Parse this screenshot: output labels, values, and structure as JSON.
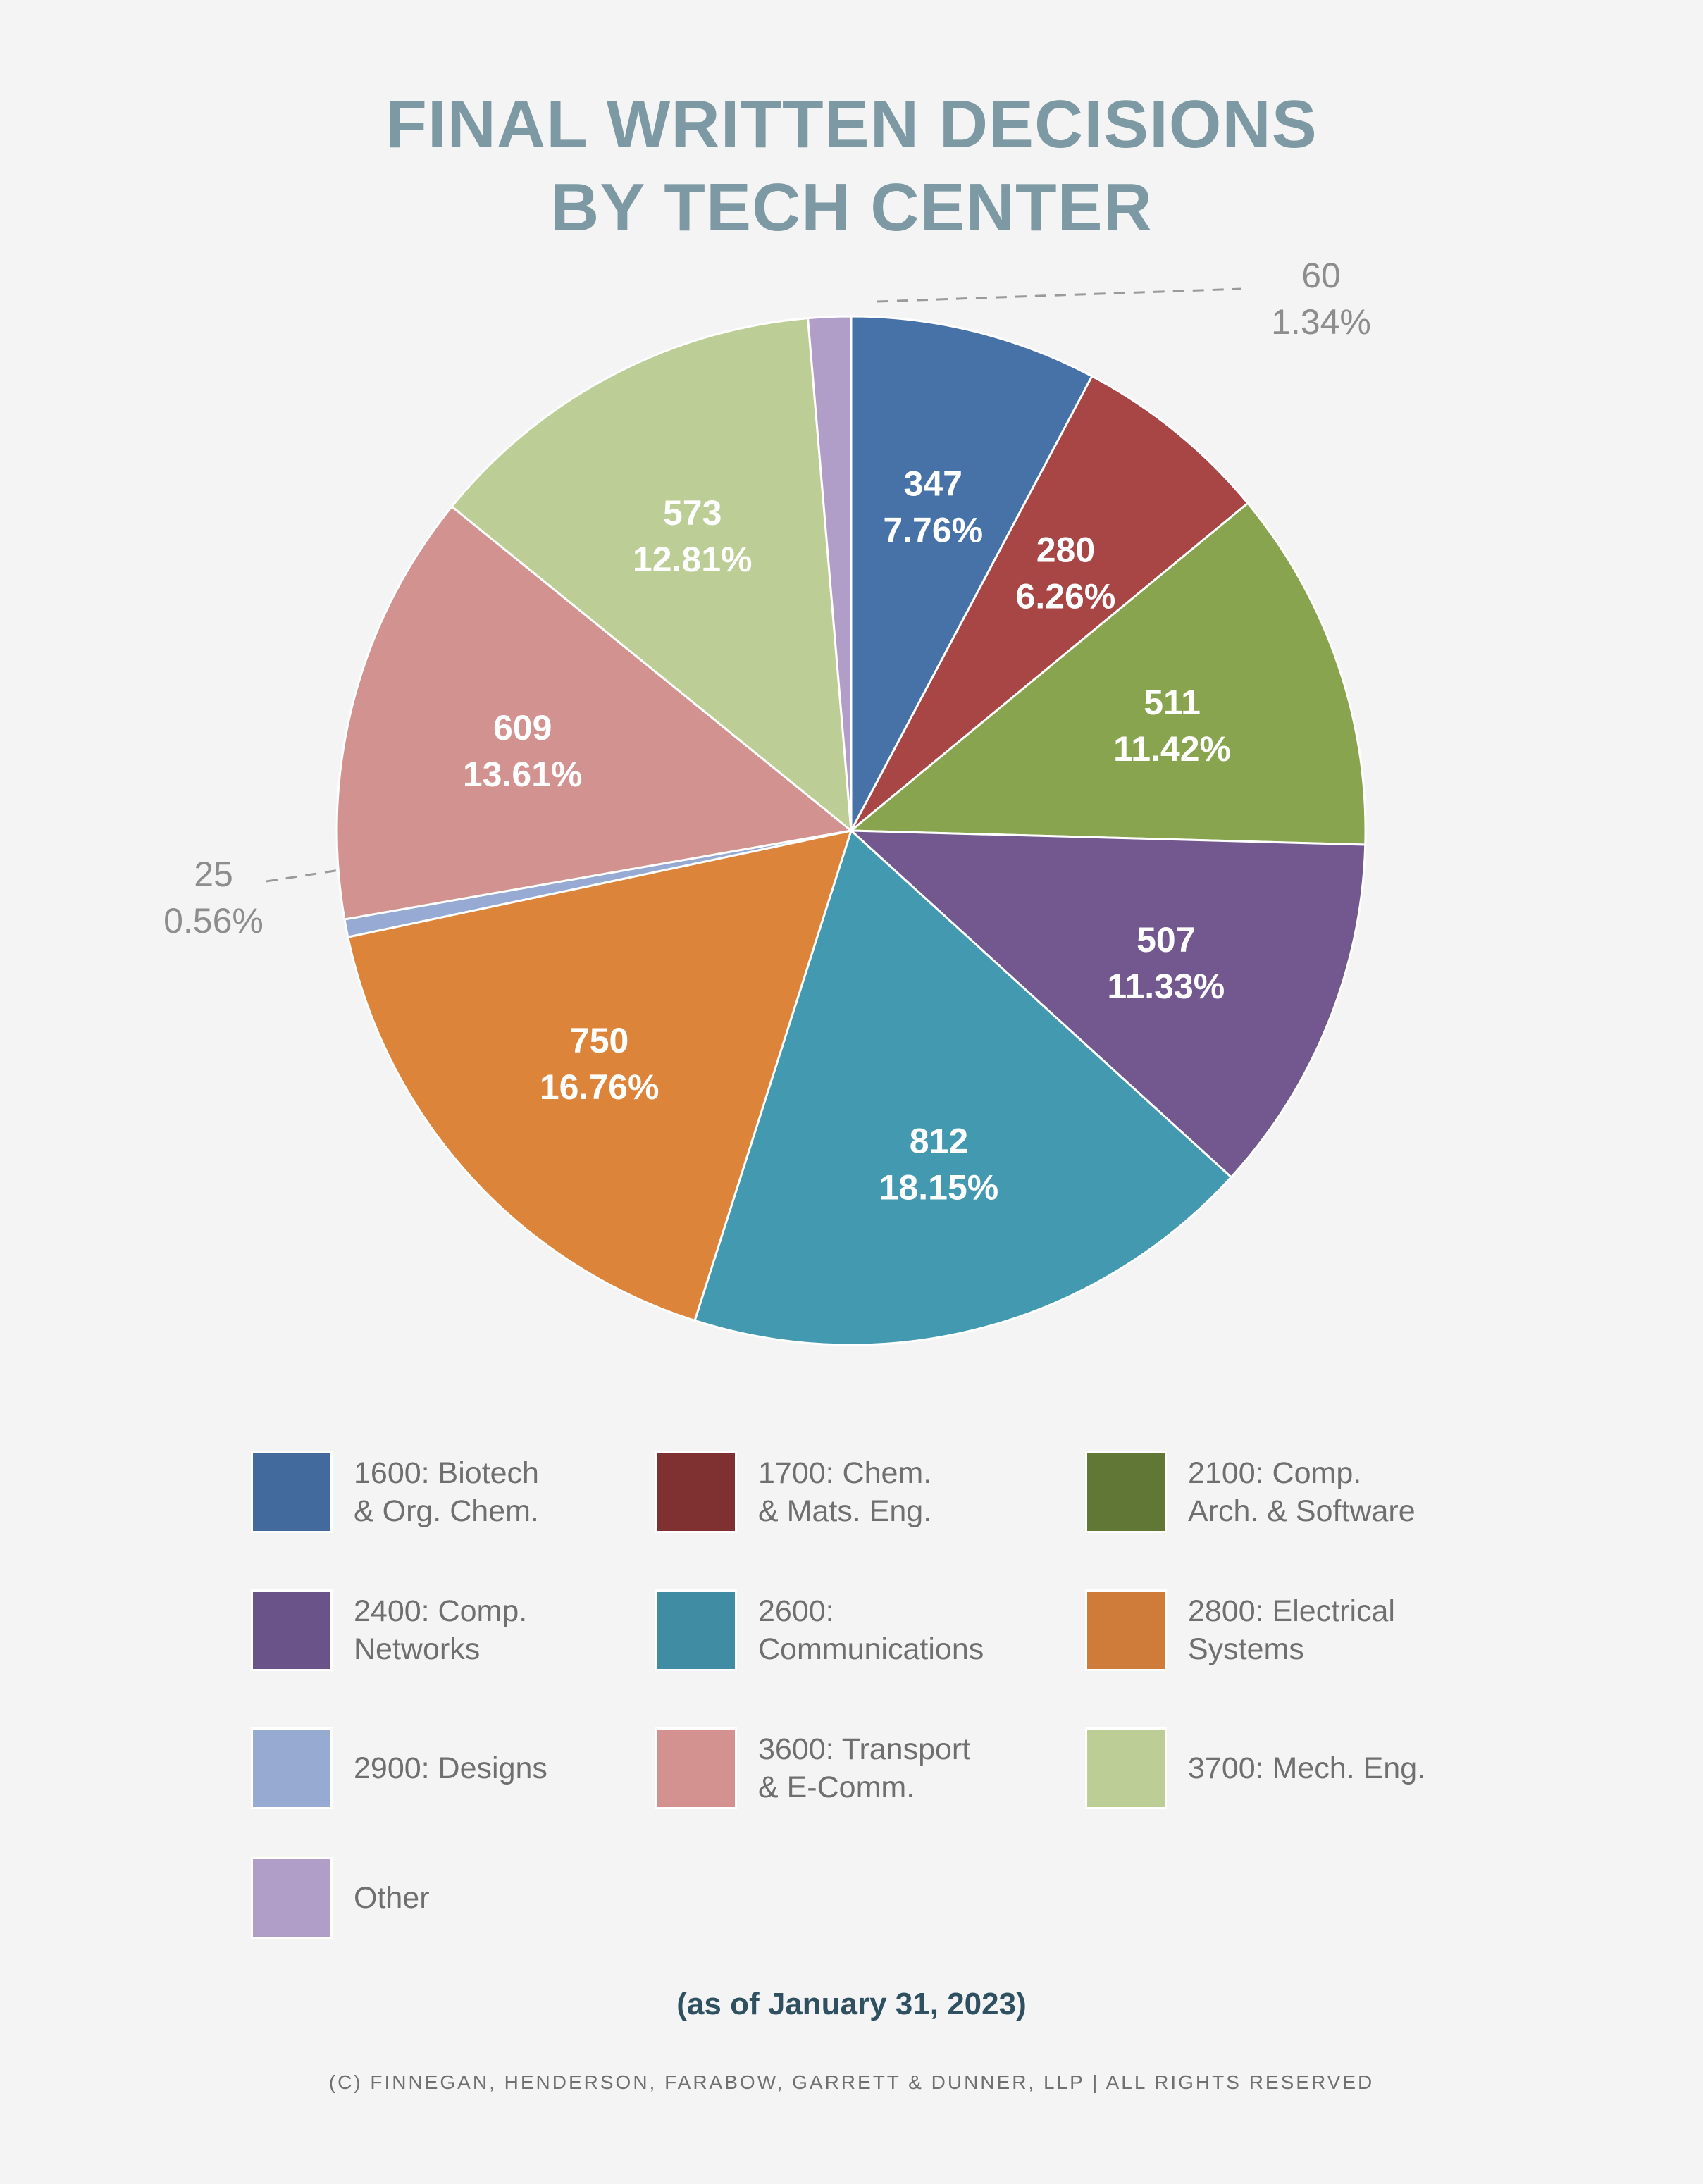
{
  "title": {
    "line1": "FINAL WRITTEN DECISIONS",
    "line2": "BY TECH CENTER"
  },
  "chart_data": {
    "type": "pie",
    "slices": [
      {
        "name": "1600: Biotech & Org. Chem.",
        "value": 347,
        "label_value": "347",
        "label_percent": "7.76%",
        "color": "#4672a7",
        "legend_color": "#436a9c"
      },
      {
        "name": "1700: Chem. & Mats. Eng.",
        "value": 280,
        "label_value": "280",
        "label_percent": "6.26%",
        "color": "#a84545",
        "legend_color": "#7f3131"
      },
      {
        "name": "2100: Comp. Arch. & Software",
        "value": 511,
        "label_value": "511",
        "label_percent": "11.42%",
        "color": "#89a44f",
        "legend_color": "#607736"
      },
      {
        "name": "2400: Comp. Networks",
        "value": 507,
        "label_value": "507",
        "label_percent": "11.33%",
        "color": "#72588f",
        "legend_color": "#6a5389"
      },
      {
        "name": "2600: Communications",
        "value": 812,
        "label_value": "812",
        "label_percent": "18.15%",
        "color": "#4399b0",
        "legend_color": "#3f8ca3"
      },
      {
        "name": "2800: Electrical Systems",
        "value": 750,
        "label_value": "750",
        "label_percent": "16.76%",
        "color": "#dc843a",
        "legend_color": "#cf7c3a"
      },
      {
        "name": "2900: Designs",
        "value": 25,
        "label_value": "25",
        "label_percent": "0.56%",
        "color": "#97aad3",
        "legend_color": "#97aad2"
      },
      {
        "name": "3600: Transport & E-Comm.",
        "value": 609,
        "label_value": "609",
        "label_percent": "13.61%",
        "color": "#d29290",
        "legend_color": "#d39290"
      },
      {
        "name": "3700: Mech. Eng.",
        "value": 573,
        "label_value": "573",
        "label_percent": "12.81%",
        "color": "#bccd96",
        "legend_color": "#bccd96"
      },
      {
        "name": "Other",
        "value": 60,
        "label_value": "60",
        "label_percent": "1.34%",
        "color": "#b09ec9",
        "legend_color": "#b09ec9"
      }
    ],
    "start_angle_deg": 0,
    "direction": "clockwise",
    "external_labels": [
      "2900: Designs",
      "Other"
    ]
  },
  "legend": {
    "items": [
      {
        "label": "1600: Biotech\n& Org. Chem.",
        "color": "#436a9c"
      },
      {
        "label": "1700: Chem.\n& Mats. Eng.",
        "color": "#7f3131"
      },
      {
        "label": "2100: Comp.\nArch. & Software",
        "color": "#607736"
      },
      {
        "label": "2400: Comp.\nNetworks",
        "color": "#6a5389"
      },
      {
        "label": "2600:\nCommunications",
        "color": "#3f8ca3"
      },
      {
        "label": "2800: Electrical\nSystems",
        "color": "#cf7c3a"
      },
      {
        "label": "2900: Designs",
        "color": "#97aad2"
      },
      {
        "label": "3600: Transport\n& E-Comm.",
        "color": "#d39290"
      },
      {
        "label": "3700: Mech. Eng.",
        "color": "#bccd96"
      },
      {
        "label": "Other",
        "color": "#b09ec9"
      }
    ]
  },
  "footer": {
    "as_of": "(as of January 31, 2023)",
    "copyright": "(C) FINNEGAN, HENDERSON, FARABOW, GARRETT & DUNNER, LLP | ALL RIGHTS RESERVED"
  }
}
